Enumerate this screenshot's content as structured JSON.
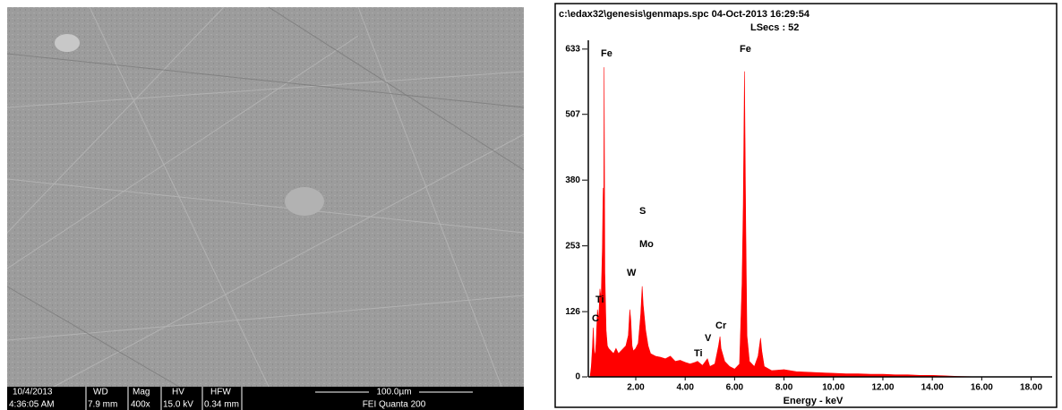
{
  "sem": {
    "date": "10/4/2013",
    "time": "4:36:05 AM",
    "wd_label": "WD",
    "wd": "7.9 mm",
    "mag_label": "Mag",
    "mag": "400x",
    "hv_label": "HV",
    "hv": "15.0 kV",
    "hfw_label": "HFW",
    "hfw": "0.34 mm",
    "scale": "100.0µm",
    "instrument": "FEI Quanta 200"
  },
  "chart_data": {
    "type": "area",
    "title": "c:\\edax32\\genesis\\genmaps.spc  04-Oct-2013 16:29:54",
    "subtitle": "LSecs : 52",
    "x_label": "Energy - keV",
    "color": "#ff0000",
    "xlim": [
      0.08,
      18.85
    ],
    "ylim": [
      0,
      650
    ],
    "xticks": [
      {
        "value": 2,
        "label": "2.00"
      },
      {
        "value": 4,
        "label": "4.00"
      },
      {
        "value": 6,
        "label": "6.00"
      },
      {
        "value": 8,
        "label": "8.00"
      },
      {
        "value": 10,
        "label": "10.00"
      },
      {
        "value": 12,
        "label": "12.00"
      },
      {
        "value": 14,
        "label": "14.00"
      },
      {
        "value": 16,
        "label": "16.00"
      },
      {
        "value": 18,
        "label": "18.00"
      }
    ],
    "yticks": [
      0,
      126,
      253,
      380,
      507,
      633
    ],
    "annotations": [
      "Fe",
      "Fe",
      "S",
      "Mo",
      "W",
      "Ti",
      "C",
      "Cr",
      "V",
      "Ti"
    ],
    "x": [
      0.15,
      0.2,
      0.25,
      0.28,
      0.32,
      0.36,
      0.4,
      0.45,
      0.5,
      0.55,
      0.6,
      0.65,
      0.68,
      0.7,
      0.72,
      0.75,
      0.8,
      0.85,
      0.9,
      1.0,
      1.1,
      1.2,
      1.3,
      1.4,
      1.5,
      1.6,
      1.7,
      1.76,
      1.8,
      1.85,
      1.9,
      2.0,
      2.1,
      2.2,
      2.26,
      2.3,
      2.4,
      2.5,
      2.6,
      2.8,
      3.0,
      3.2,
      3.4,
      3.6,
      3.8,
      4.0,
      4.2,
      4.4,
      4.5,
      4.7,
      4.9,
      5.0,
      5.2,
      5.35,
      5.41,
      5.45,
      5.6,
      5.8,
      6.0,
      6.2,
      6.3,
      6.35,
      6.4,
      6.45,
      6.5,
      6.6,
      6.8,
      6.95,
      7.05,
      7.1,
      7.2,
      7.5,
      8.0,
      8.5,
      9.0,
      9.5,
      10.0,
      10.5,
      11.0,
      11.5,
      12.0,
      12.5,
      13.0,
      13.5,
      14.0,
      14.5,
      15.0,
      16.0,
      18.8
    ],
    "values": [
      0,
      20,
      60,
      95,
      50,
      40,
      70,
      130,
      110,
      170,
      150,
      250,
      365,
      180,
      598,
      200,
      90,
      60,
      55,
      50,
      45,
      55,
      45,
      50,
      55,
      60,
      80,
      130,
      110,
      60,
      50,
      55,
      65,
      120,
      175,
      140,
      90,
      60,
      45,
      40,
      38,
      35,
      40,
      30,
      32,
      28,
      25,
      28,
      30,
      22,
      35,
      20,
      25,
      60,
      78,
      55,
      30,
      20,
      15,
      25,
      180,
      330,
      590,
      300,
      80,
      30,
      20,
      40,
      75,
      50,
      20,
      12,
      14,
      10,
      9,
      8,
      7,
      6,
      6,
      5,
      5,
      4,
      4,
      3,
      3,
      2,
      1,
      0,
      0
    ]
  }
}
